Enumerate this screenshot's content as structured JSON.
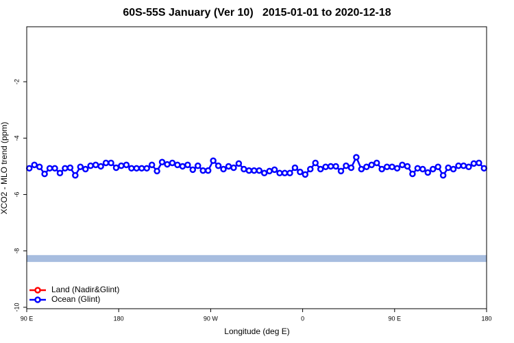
{
  "chart_data": {
    "type": "line",
    "title": "60S-55S January (Ver 10)   2015-01-01 to 2020-12-18",
    "xlabel": "Longitude (deg E)",
    "ylabel": "XCO2 - MLO trend (ppm)",
    "xlim": [
      90,
      540
    ],
    "ylim": [
      -10.05,
      -0.05
    ],
    "xticks": [
      {
        "value": 90,
        "label": "90 E"
      },
      180,
      {
        "value": 270,
        "label": "90 W"
      },
      {
        "value": 360,
        "label": "0"
      },
      {
        "value": 450,
        "label": "90 E"
      },
      {
        "value": 540,
        "label": "180"
      }
    ],
    "yticks": [
      -10,
      -8,
      -6,
      -4,
      -2
    ],
    "x": [
      92.5,
      97.5,
      102.5,
      107.5,
      112.5,
      117.5,
      122.5,
      127.5,
      132.5,
      137.5,
      142.5,
      147.5,
      152.5,
      157.5,
      162.5,
      167.5,
      172.5,
      177.5,
      182.5,
      187.5,
      192.5,
      197.5,
      202.5,
      207.5,
      212.5,
      217.5,
      222.5,
      227.5,
      232.5,
      237.5,
      242.5,
      247.5,
      252.5,
      257.5,
      262.5,
      267.5,
      272.5,
      277.5,
      282.5,
      287.5,
      292.5,
      297.5,
      302.5,
      307.5,
      312.5,
      317.5,
      322.5,
      327.5,
      332.5,
      337.5,
      342.5,
      347.5,
      352.5,
      357.5,
      362.5,
      367.5,
      372.5,
      377.5,
      382.5,
      387.5,
      392.5,
      397.5,
      402.5,
      407.5,
      412.5,
      417.5,
      422.5,
      427.5,
      432.5,
      437.5,
      442.5,
      447.5,
      452.5,
      457.5,
      462.5,
      467.5,
      472.5,
      477.5,
      482.5,
      487.5,
      492.5,
      497.5,
      502.5,
      507.5,
      512.5,
      517.5,
      522.5,
      527.5,
      532.5,
      537.5
    ],
    "series": [
      {
        "name": "Land (Nadir&Glint)",
        "color": "#ff0000",
        "values": [
          null,
          null,
          null,
          null,
          null,
          null,
          null,
          null,
          null,
          null,
          null,
          null,
          null,
          null,
          null,
          null,
          null,
          null,
          null,
          null,
          null,
          null,
          null,
          null,
          null,
          null,
          null,
          null,
          null,
          null,
          null,
          null,
          null,
          null,
          null,
          null,
          null,
          null,
          null,
          null,
          null,
          null,
          null,
          null,
          null,
          null,
          null,
          null,
          null,
          null,
          null,
          null,
          null,
          null,
          null,
          null,
          null,
          null,
          null,
          null,
          null,
          null,
          null,
          null,
          null,
          null,
          null,
          null,
          null,
          null,
          null,
          null,
          null,
          null,
          null,
          null,
          null,
          null,
          null,
          null,
          null,
          null,
          null,
          null,
          null,
          null,
          null,
          null,
          null,
          null
        ]
      },
      {
        "name": "Ocean (Glint)",
        "color": "#0000ff",
        "values": [
          -5.07,
          -4.95,
          -5.02,
          -5.27,
          -5.07,
          -5.07,
          -5.24,
          -5.07,
          -5.05,
          -5.32,
          -5.02,
          -5.1,
          -4.98,
          -4.95,
          -5.0,
          -4.88,
          -4.88,
          -5.05,
          -4.98,
          -4.95,
          -5.07,
          -5.07,
          -5.07,
          -5.07,
          -4.95,
          -5.17,
          -4.85,
          -4.93,
          -4.88,
          -4.95,
          -5.0,
          -4.95,
          -5.12,
          -4.98,
          -5.15,
          -5.15,
          -4.8,
          -4.98,
          -5.1,
          -5.0,
          -5.05,
          -4.9,
          -5.1,
          -5.15,
          -5.15,
          -5.15,
          -5.24,
          -5.17,
          -5.12,
          -5.24,
          -5.24,
          -5.24,
          -5.05,
          -5.2,
          -5.29,
          -5.1,
          -4.88,
          -5.1,
          -5.02,
          -5.0,
          -5.0,
          -5.17,
          -4.98,
          -5.05,
          -4.68,
          -5.1,
          -5.02,
          -4.95,
          -4.88,
          -5.1,
          -5.02,
          -5.02,
          -5.07,
          -4.95,
          -5.0,
          -5.27,
          -5.07,
          -5.1,
          -5.22,
          -5.1,
          -5.02,
          -5.32,
          -5.05,
          -5.1,
          -4.98,
          -4.98,
          -5.02,
          -4.9,
          -4.88,
          -5.07
        ]
      }
    ],
    "reference_band": {
      "value": -8.27,
      "color": "#a7bddf"
    },
    "legend": "bottom-left"
  }
}
